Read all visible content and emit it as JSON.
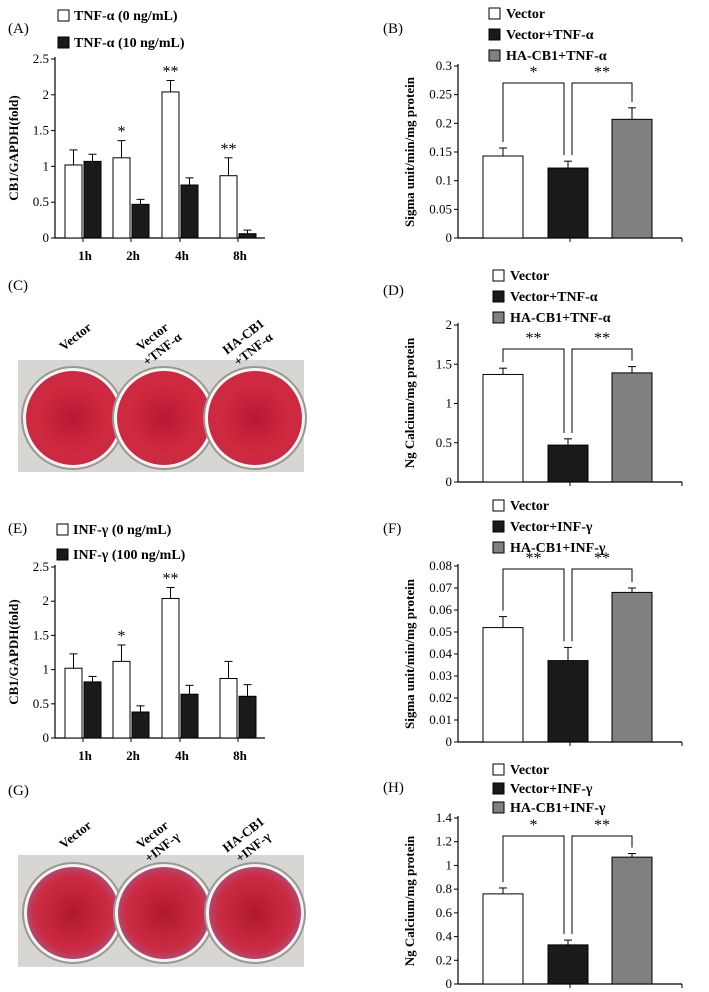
{
  "colors": {
    "white_bar": "#ffffff",
    "black_bar": "#1a1a1a",
    "gray_bar": "#808080",
    "stain_red": "#c8203a"
  },
  "chart_data": [
    {
      "id": "A",
      "panel_label": "(A)",
      "type": "bar",
      "ylabel": "CB1/GAPDH(fold)",
      "yticks": [
        "0",
        "0.5",
        "1",
        "1.5",
        "2",
        "2.5"
      ],
      "ylim": [
        0,
        2.5
      ],
      "categories": [
        "1h",
        "2h",
        "4h",
        "8h"
      ],
      "series": [
        {
          "name": "TNF-α (0 ng/mL)",
          "fill": "white",
          "values": [
            1.02,
            1.12,
            2.04,
            0.87
          ],
          "errors": [
            0.21,
            0.24,
            0.16,
            0.25
          ]
        },
        {
          "name": "TNF-α (10 ng/mL)",
          "fill": "black",
          "values": [
            1.07,
            0.47,
            0.74,
            0.06
          ],
          "errors": [
            0.1,
            0.07,
            0.1,
            0.05
          ]
        }
      ],
      "stars": [
        "",
        "*",
        "**",
        "**"
      ]
    },
    {
      "id": "B",
      "panel_label": "(B)",
      "type": "bar",
      "ylabel": "Sigma unit/min/mg protein",
      "yticks": [
        "0",
        "0.05",
        "0.1",
        "0.15",
        "0.2",
        "0.25",
        "0.3"
      ],
      "ylim": [
        0,
        0.3
      ],
      "categories": [
        "Vector",
        "Vector+TNF-α",
        "HA-CB1+TNF-α"
      ],
      "values": [
        0.143,
        0.122,
        0.207
      ],
      "errors": [
        0.014,
        0.012,
        0.02
      ],
      "fills": [
        "white",
        "black",
        "gray"
      ],
      "comparisons": [
        {
          "from": 0,
          "to": 1,
          "label": "*"
        },
        {
          "from": 1,
          "to": 2,
          "label": "**"
        }
      ]
    },
    {
      "id": "D",
      "panel_label": "(D)",
      "type": "bar",
      "ylabel": "Ng Calcium/mg protein",
      "yticks": [
        "0",
        "0.5",
        "1",
        "1.5",
        "2"
      ],
      "ylim": [
        0,
        2
      ],
      "categories": [
        "Vector",
        "Vector+TNF-α",
        "HA-CB1+TNF-α"
      ],
      "values": [
        1.37,
        0.47,
        1.39
      ],
      "errors": [
        0.08,
        0.08,
        0.08
      ],
      "fills": [
        "white",
        "black",
        "gray"
      ],
      "comparisons": [
        {
          "from": 0,
          "to": 1,
          "label": "**"
        },
        {
          "from": 1,
          "to": 2,
          "label": "**"
        }
      ]
    },
    {
      "id": "E",
      "panel_label": "(E)",
      "type": "bar",
      "ylabel": "CB1/GAPDH(fold)",
      "yticks": [
        "0",
        "0.5",
        "1",
        "1.5",
        "2",
        "2.5"
      ],
      "ylim": [
        0,
        2.5
      ],
      "categories": [
        "1h",
        "2h",
        "4h",
        "8h"
      ],
      "series": [
        {
          "name": "INF-γ (0 ng/mL)",
          "fill": "white",
          "values": [
            1.02,
            1.12,
            2.04,
            0.87
          ],
          "errors": [
            0.21,
            0.24,
            0.16,
            0.25
          ]
        },
        {
          "name": "INF-γ (100 ng/mL)",
          "fill": "black",
          "values": [
            0.82,
            0.38,
            0.64,
            0.61
          ],
          "errors": [
            0.08,
            0.09,
            0.13,
            0.17
          ]
        }
      ],
      "stars": [
        "",
        "*",
        "**",
        ""
      ]
    },
    {
      "id": "F",
      "panel_label": "(F)",
      "type": "bar",
      "ylabel": "Sigma unit/min/mg protein",
      "yticks": [
        "0",
        "0.01",
        "0.02",
        "0.03",
        "0.04",
        "0.05",
        "0.06",
        "0.07",
        "0.08"
      ],
      "ylim": [
        0,
        0.08
      ],
      "categories": [
        "Vector",
        "Vector+INF-γ",
        "HA-CB1+INF-γ"
      ],
      "values": [
        0.052,
        0.037,
        0.068
      ],
      "errors": [
        0.005,
        0.006,
        0.002
      ],
      "fills": [
        "white",
        "black",
        "gray"
      ],
      "comparisons": [
        {
          "from": 0,
          "to": 1,
          "label": "**"
        },
        {
          "from": 1,
          "to": 2,
          "label": "**"
        }
      ]
    },
    {
      "id": "H",
      "panel_label": "(H)",
      "type": "bar",
      "ylabel": "Ng Calcium/mg protein",
      "yticks": [
        "0",
        "0.2",
        "0.4",
        "0.6",
        "0.8",
        "1",
        "1.2",
        "1.4"
      ],
      "ylim": [
        0,
        1.4
      ],
      "categories": [
        "Vector",
        "Vector+INF-γ",
        "HA-CB1+INF-γ"
      ],
      "values": [
        0.76,
        0.33,
        1.07
      ],
      "errors": [
        0.05,
        0.04,
        0.03
      ],
      "fills": [
        "white",
        "black",
        "gray"
      ],
      "comparisons": [
        {
          "from": 0,
          "to": 1,
          "label": "*"
        },
        {
          "from": 1,
          "to": 2,
          "label": "**"
        }
      ]
    }
  ],
  "stain_panels": [
    {
      "id": "C",
      "panel_label": "(C)",
      "labels": [
        [
          "Vector"
        ],
        [
          "Vector",
          "+TNF-α"
        ],
        [
          "HA-CB1",
          "+TNF-α"
        ]
      ]
    },
    {
      "id": "G",
      "panel_label": "(G)",
      "labels": [
        [
          "Vector"
        ],
        [
          "Vector",
          "+INF-γ"
        ],
        [
          "HA-CB1",
          "+INF-γ"
        ]
      ]
    }
  ]
}
